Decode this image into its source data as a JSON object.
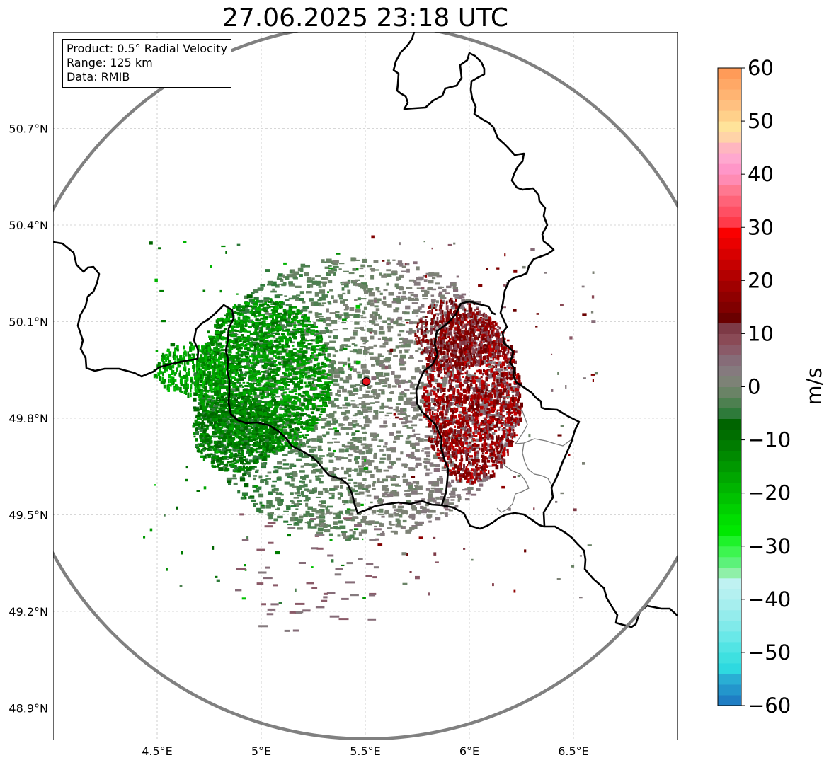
{
  "title": "27.06.2025 23:18 UTC",
  "info_box": {
    "product": "Product: 0.5° Radial Velocity",
    "range": "Range: 125 km",
    "data_source": "Data: RMIB"
  },
  "map": {
    "extent": {
      "lon_min": 4.0,
      "lon_max": 7.0,
      "lat_min": 48.8,
      "lat_max": 51.0
    },
    "lon_ticks": [
      {
        "value": 4.5,
        "label": "4.5°E"
      },
      {
        "value": 5.0,
        "label": "5°E"
      },
      {
        "value": 5.5,
        "label": "5.5°E"
      },
      {
        "value": 6.0,
        "label": "6°E"
      },
      {
        "value": 6.5,
        "label": "6.5°E"
      }
    ],
    "lat_ticks": [
      {
        "value": 50.7,
        "label": "50.7°N"
      },
      {
        "value": 50.4,
        "label": "50.4°N"
      },
      {
        "value": 50.1,
        "label": "50.1°N"
      },
      {
        "value": 49.8,
        "label": "49.8°N"
      },
      {
        "value": 49.5,
        "label": "49.5°N"
      },
      {
        "value": 49.2,
        "label": "49.2°N"
      },
      {
        "value": 48.9,
        "label": "48.9°N"
      }
    ],
    "radar_site": {
      "lon": 5.505,
      "lat": 49.914,
      "color": "#e8141c"
    },
    "range_ring_color": "#808080",
    "border_color": "#000000",
    "gridline_color": "#b0b0b0"
  },
  "colorbar": {
    "label": "m/s",
    "vmin": -60,
    "vmax": 60,
    "ticks": [
      {
        "value": 60,
        "label": "60"
      },
      {
        "value": 50,
        "label": "50"
      },
      {
        "value": 40,
        "label": "40"
      },
      {
        "value": 30,
        "label": "30"
      },
      {
        "value": 20,
        "label": "20"
      },
      {
        "value": 10,
        "label": "10"
      },
      {
        "value": 0,
        "label": "0"
      },
      {
        "value": -10,
        "label": "−10"
      },
      {
        "value": -20,
        "label": "−20"
      },
      {
        "value": -30,
        "label": "−30"
      },
      {
        "value": -40,
        "label": "−40"
      },
      {
        "value": -50,
        "label": "−50"
      },
      {
        "value": -60,
        "label": "−60"
      }
    ],
    "colors": [
      "#1f7ec4",
      "#2396cc",
      "#29aed4",
      "#2ed9e0",
      "#3ee0e0",
      "#52e4e4",
      "#69e8e8",
      "#80eaea",
      "#94ecec",
      "#a6eeee",
      "#b4f0f0",
      "#bff2f2",
      "#8ff0a8",
      "#5cf27a",
      "#3df550",
      "#1ef22a",
      "#00e800",
      "#00de00",
      "#00d000",
      "#00c200",
      "#00b400",
      "#00a600",
      "#009800",
      "#008a00",
      "#007c00",
      "#006e00",
      "#006400",
      "#2e7a3a",
      "#4d8050",
      "#6a8366",
      "#7d8276",
      "#857a7e",
      "#866c78",
      "#8a5a68",
      "#8a4a56",
      "#7d3a46",
      "#6a0000",
      "#800000",
      "#8f0000",
      "#a00000",
      "#b30000",
      "#c60000",
      "#d80000",
      "#ea0000",
      "#fa0000",
      "#ff3a4a",
      "#ff4f63",
      "#ff6378",
      "#ff7890",
      "#ff8bb3",
      "#ff96c8",
      "#ffa8cf",
      "#ffb6c0",
      "#ffd3a8",
      "#ffe39a",
      "#ffd08a",
      "#ffc080",
      "#ffb472",
      "#ffa866",
      "#ff9b58"
    ]
  }
}
